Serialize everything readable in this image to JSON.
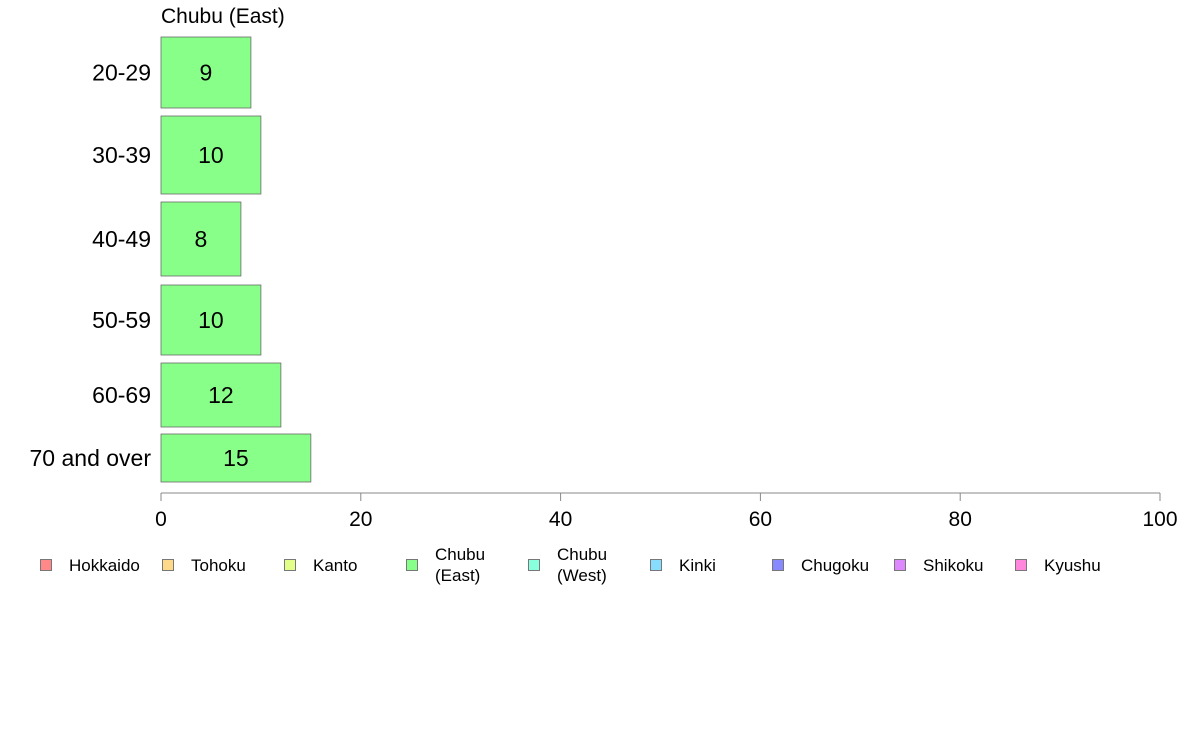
{
  "chart_data": {
    "type": "bar",
    "orientation": "horizontal",
    "title": "Chubu (East)",
    "categories": [
      "20-29",
      "30-39",
      "40-49",
      "50-59",
      "60-69",
      "70 and over"
    ],
    "values": [
      9,
      10,
      8,
      10,
      12,
      15
    ],
    "value_labels": [
      "9",
      "10",
      "8",
      "10",
      "12",
      "15"
    ],
    "xlim": [
      0,
      100
    ],
    "xticks": [
      0,
      20,
      40,
      60,
      80,
      100
    ],
    "xtick_labels": [
      "0",
      "20",
      "40",
      "60",
      "80",
      "100"
    ],
    "xlabel": "",
    "ylabel": "",
    "grid": false,
    "bar_color": "#88ff88",
    "legend_placement": "bottom",
    "legend": [
      {
        "label": "Hokkaido",
        "color": "#ff8888"
      },
      {
        "label": "Tohoku",
        "color": "#ffd98a"
      },
      {
        "label": "Kanto",
        "color": "#e3ff8a"
      },
      {
        "label": "Chubu\n(East)",
        "color": "#88ff88"
      },
      {
        "label": "Chubu\n(West)",
        "color": "#88ffdd"
      },
      {
        "label": "Kinki",
        "color": "#88ddff"
      },
      {
        "label": "Chugoku",
        "color": "#8888ff"
      },
      {
        "label": "Shikoku",
        "color": "#dd88ff"
      },
      {
        "label": "Kyushu",
        "color": "#ff88dd"
      }
    ]
  }
}
